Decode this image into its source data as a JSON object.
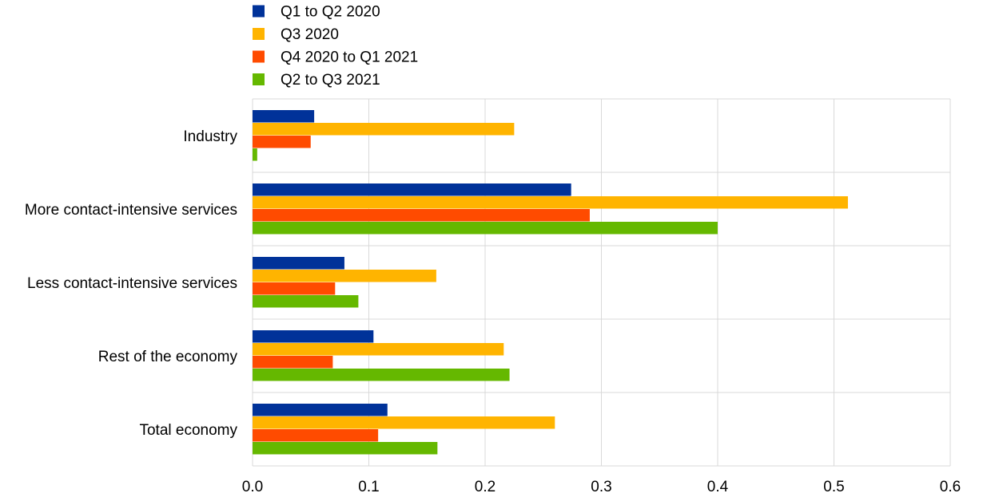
{
  "chart_data": {
    "type": "bar",
    "orientation": "horizontal",
    "title": "",
    "xlabel": "",
    "ylabel": "",
    "categories": [
      "Industry",
      "More contact-intensive services",
      "Less contact-intensive services",
      "Rest of the economy",
      "Total economy"
    ],
    "series": [
      {
        "name": "Q1 to Q2 2020",
        "color": "#003299",
        "values": [
          0.053,
          0.274,
          0.079,
          0.104,
          0.116
        ]
      },
      {
        "name": "Q3 2020",
        "color": "#FFB400",
        "values": [
          0.225,
          0.512,
          0.158,
          0.216,
          0.26
        ]
      },
      {
        "name": "Q4 2020 to Q1 2021",
        "color": "#FF4B00",
        "values": [
          0.05,
          0.29,
          0.071,
          0.069,
          0.108
        ]
      },
      {
        "name": "Q2 to Q3 2021",
        "color": "#65B800",
        "values": [
          0.004,
          0.4,
          0.091,
          0.221,
          0.159
        ]
      }
    ],
    "xlim": [
      0,
      0.6
    ],
    "xticks": [
      "0.0",
      "0.1",
      "0.2",
      "0.3",
      "0.4",
      "0.5",
      "0.6"
    ],
    "grid": true,
    "legend": "top-left"
  }
}
